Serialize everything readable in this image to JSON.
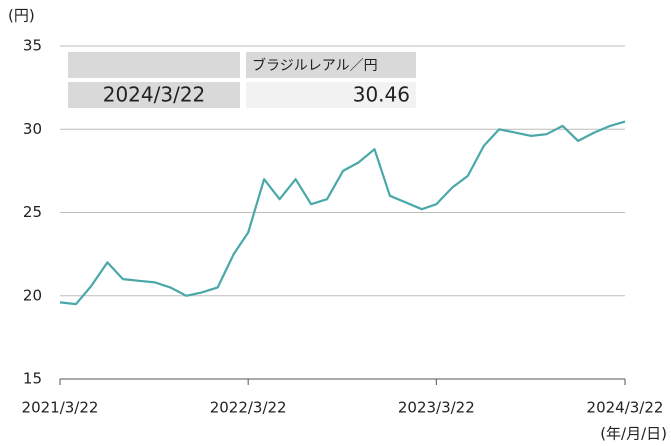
{
  "chart_data": {
    "type": "line",
    "y_unit": "(円)",
    "x_unit": "(年/月/日)",
    "x": [
      "2021/3/22",
      "2021/4/22",
      "2021/5/22",
      "2021/6/22",
      "2021/7/22",
      "2021/8/22",
      "2021/9/22",
      "2021/10/22",
      "2021/11/22",
      "2021/12/22",
      "2022/1/22",
      "2022/2/22",
      "2022/3/22",
      "2022/4/22",
      "2022/5/22",
      "2022/6/22",
      "2022/7/22",
      "2022/8/22",
      "2022/9/22",
      "2022/10/22",
      "2022/11/22",
      "2022/12/22",
      "2023/1/22",
      "2023/2/22",
      "2023/3/22",
      "2023/4/22",
      "2023/5/22",
      "2023/6/22",
      "2023/7/22",
      "2023/8/22",
      "2023/9/22",
      "2023/10/22",
      "2023/11/22",
      "2023/12/22",
      "2024/1/22",
      "2024/2/22",
      "2024/3/22"
    ],
    "series": [
      {
        "name": "ブラジルレアル／円",
        "color": "#4aa8a8",
        "values": [
          19.6,
          19.5,
          20.6,
          22.0,
          21.0,
          20.9,
          20.8,
          20.5,
          20.0,
          20.2,
          20.5,
          22.5,
          23.8,
          27.0,
          25.8,
          27.0,
          25.5,
          25.8,
          27.5,
          28.0,
          28.8,
          26.0,
          25.6,
          25.2,
          25.5,
          26.5,
          27.2,
          29.0,
          30.0,
          29.8,
          29.6,
          29.7,
          30.2,
          29.3,
          29.8,
          30.2,
          30.46
        ]
      }
    ],
    "latest": {
      "date": "2024/3/22",
      "value": 30.46
    },
    "xlim": [
      "2021/3/22",
      "2024/3/22"
    ],
    "xticks": [
      "2021/3/22",
      "2022/3/22",
      "2023/3/22",
      "2024/3/22"
    ],
    "ylim": [
      15,
      35
    ],
    "yticks": [
      15,
      20,
      25,
      30,
      35
    ],
    "grid": true
  }
}
